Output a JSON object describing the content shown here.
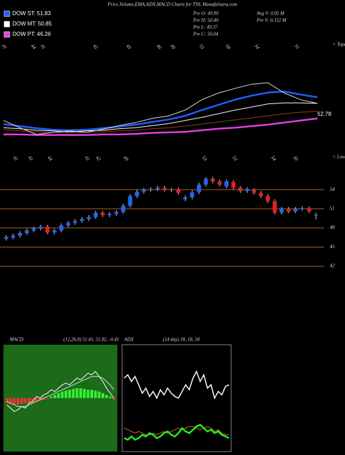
{
  "chart_data": [
    {
      "type": "line",
      "title": "Price,Volume,EMA,ADX,MACD Charts for TNL MunafaSutra.com",
      "info": [
        "Pre O: 49.99",
        "Pre H: 50.40",
        "Pre L: 49.37",
        "Pre C: 50.04",
        "Avg V: 0.05 M",
        "Pre V: 0.332 M"
      ],
      "date_labels": [
        "41",
        "44",
        "41",
        "42",
        "43",
        "46",
        "49",
        "53",
        "58",
        "34",
        "31"
      ],
      "corner_label": "< Topa",
      "annotation": "52.78",
      "ylim": [
        40,
        60
      ],
      "series": [
        {
          "name": "DOW ST: 51.83",
          "color": "#1f5fff",
          "legend": true,
          "values": [
            44,
            43.6,
            43.2,
            42.9,
            42.8,
            42.9,
            43.2,
            43.5,
            43.9,
            44.4,
            44.9,
            45.6,
            46.7,
            47.7,
            48.7,
            49.5,
            50.1,
            50.3,
            49.7,
            49.2
          ]
        },
        {
          "name": "DOW MT: 50.85",
          "color": "#ffffff",
          "legend": true,
          "values": [
            43.3,
            43.1,
            42.8,
            42.7,
            42.5,
            42.7,
            42.8,
            43.1,
            43.3,
            43.7,
            44.1,
            44.7,
            45.3,
            46,
            46.7,
            47.3,
            47.9,
            48.1,
            48.1,
            48
          ]
        },
        {
          "name": "DOW PT: 46.26",
          "color": "#e040e0",
          "legend": true,
          "values": [
            42,
            42,
            41.9,
            41.9,
            41.9,
            41.9,
            42,
            42,
            42.1,
            42.3,
            42.4,
            42.5,
            42.8,
            43.1,
            43.3,
            43.6,
            43.9,
            44.3,
            44.7,
            45.1
          ]
        },
        {
          "color": "#8b4513",
          "values": [
            42.9,
            42.7,
            42.5,
            42.4,
            42.4,
            42.4,
            42.5,
            42.7,
            42.8,
            43.1,
            43.3,
            43.6,
            44,
            44.4,
            44.8,
            45.2,
            45.6,
            46,
            46.3,
            46.5
          ]
        },
        {
          "color": "#dddddd",
          "values": [
            44.7,
            43.3,
            42,
            42.4,
            42.7,
            42.4,
            43,
            43.7,
            44.3,
            45.1,
            45.6,
            46.7,
            48.7,
            50,
            50.9,
            51.7,
            52,
            50,
            48.7,
            48
          ]
        }
      ]
    },
    {
      "type": "candlestick",
      "date_labels": [
        "41",
        "41",
        "44",
        "41",
        "42",
        "49",
        "53",
        "53",
        "54",
        "30"
      ],
      "corner_label": "< Loom",
      "up_color": "#2266ee",
      "down_color": "#dd2222",
      "grid_color": "#b0602a",
      "ylim": [
        40.5,
        57.8
      ],
      "yticks": [
        42,
        45,
        48,
        51,
        54
      ],
      "grid": true,
      "open": [
        46.3,
        46.5,
        46.8,
        47.2,
        47.6,
        47.9,
        48.2,
        47.3,
        47.6,
        48.4,
        48.8,
        49.1,
        49.4,
        49.7,
        50.4,
        50.0,
        50.2,
        50.5,
        51.5,
        53.0,
        53.7,
        54.0,
        54.1,
        54.3,
        54.0,
        54.0,
        52.5,
        52.8,
        53.6,
        54.8,
        55.7,
        55.3,
        54.5,
        55.2,
        54.3,
        53.8,
        53.9,
        53.5,
        53.0,
        52.2,
        50.4,
        51.0,
        50.6,
        51.0,
        51.1,
        49.99
      ],
      "close": [
        46.6,
        46.8,
        47.2,
        47.6,
        47.9,
        48.2,
        47.3,
        47.6,
        48.4,
        48.8,
        49.1,
        49.4,
        49.7,
        50.4,
        50.0,
        50.2,
        50.5,
        51.5,
        53.0,
        53.7,
        54.0,
        54.1,
        54.3,
        54.0,
        53.9,
        53.5,
        52.8,
        53.6,
        54.8,
        55.7,
        55.3,
        54.8,
        55.3,
        54.3,
        53.8,
        54.1,
        53.5,
        53.0,
        52.2,
        50.4,
        51.0,
        50.6,
        51.0,
        51.1,
        50.6,
        50.04
      ],
      "high": [
        46.9,
        47.1,
        47.5,
        47.9,
        48.2,
        48.5,
        48.5,
        47.9,
        48.7,
        49.1,
        49.4,
        49.7,
        50.0,
        50.7,
        50.7,
        50.5,
        50.8,
        51.8,
        53.3,
        54.0,
        54.3,
        54.4,
        54.6,
        54.6,
        54.3,
        54.3,
        53.1,
        53.9,
        55.1,
        56.0,
        56.0,
        55.6,
        55.6,
        55.5,
        54.6,
        54.4,
        54.2,
        53.8,
        53.3,
        52.5,
        51.3,
        51.3,
        51.3,
        51.4,
        51.4,
        50.4
      ],
      "low": [
        46.0,
        46.2,
        46.5,
        46.9,
        47.3,
        47.6,
        47.0,
        47.0,
        47.3,
        48.1,
        48.5,
        48.8,
        49.1,
        49.4,
        49.7,
        49.7,
        49.9,
        50.2,
        51.2,
        52.7,
        53.4,
        53.7,
        53.8,
        53.7,
        53.6,
        53.2,
        52.2,
        52.5,
        53.3,
        54.5,
        55.0,
        54.5,
        54.2,
        54.0,
        53.5,
        53.5,
        53.2,
        52.7,
        51.9,
        50.1,
        50.1,
        50.3,
        50.3,
        50.7,
        50.3,
        49.37
      ]
    },
    {
      "type": "macd",
      "title": "MACD",
      "subtitle": "(12,26,9) 51.41, 51.82, -0.41",
      "ylim": [
        -3,
        3
      ],
      "background": "#1b6b1b",
      "histogram": [
        -0.3,
        -0.35,
        -0.4,
        -0.4,
        -0.35,
        -0.3,
        -0.3,
        -0.25,
        -0.2,
        -0.15,
        -0.1,
        -0.05,
        0.1,
        0.2,
        0.3,
        0.4,
        0.45,
        0.5,
        0.55,
        0.6,
        0.6,
        0.55,
        0.5,
        0.5,
        0.45,
        0.4,
        0.3,
        0.2,
        0.1,
        -0.1
      ],
      "positive_color": "#33ee33",
      "negative_color": "#ee3333",
      "series": [
        {
          "color": "#ffffff",
          "values": [
            -0.4,
            -0.6,
            -0.8,
            -0.7,
            -0.5,
            -0.6,
            -0.3,
            -0.2,
            0.1,
            0.0,
            0.2,
            0.3,
            0.5,
            0.4,
            0.6,
            0.8,
            0.9,
            0.8,
            1.0,
            1.2,
            1.1,
            1.3,
            1.5,
            1.4,
            1.6,
            1.3,
            1.0,
            0.6,
            0.3,
            0.0
          ]
        },
        {
          "color": "#dddddd",
          "values": [
            -0.2,
            -0.3,
            -0.4,
            -0.5,
            -0.5,
            -0.5,
            -0.4,
            -0.3,
            -0.2,
            -0.1,
            0.0,
            0.1,
            0.2,
            0.3,
            0.4,
            0.5,
            0.6,
            0.7,
            0.8,
            0.9,
            1.0,
            1.1,
            1.2,
            1.3,
            1.3,
            1.3,
            1.2,
            1.0,
            0.8,
            0.5
          ]
        }
      ]
    },
    {
      "type": "line",
      "title": "ADX",
      "subtitle": "(14 day) 30, 18, 34",
      "ylim": [
        0,
        60
      ],
      "background": "#000000",
      "series": [
        {
          "color": "#ffffff",
          "width": 1.5,
          "values": [
            42,
            44,
            40,
            43,
            38,
            33,
            36,
            31,
            34,
            30,
            35,
            32,
            36,
            33,
            31,
            30,
            34,
            38,
            35,
            42,
            46,
            40,
            44,
            36,
            38,
            30,
            34,
            32,
            37,
            38
          ]
        },
        {
          "color": "#d2691e",
          "width": 1,
          "values": [
            12,
            11,
            10,
            9,
            10,
            9,
            8,
            8,
            9,
            8,
            9,
            10,
            9,
            10,
            11,
            12,
            11,
            12,
            13,
            13,
            12,
            11,
            12,
            13,
            12,
            10,
            11,
            9,
            8,
            8
          ]
        },
        {
          "color": "#22ee22",
          "width": 2.5,
          "values": [
            6,
            5,
            7,
            5,
            6,
            8,
            7,
            9,
            8,
            6,
            7,
            9,
            10,
            8,
            7,
            9,
            12,
            10,
            9,
            11,
            13,
            14,
            12,
            10,
            11,
            9,
            10,
            8,
            7,
            6
          ]
        }
      ]
    }
  ]
}
